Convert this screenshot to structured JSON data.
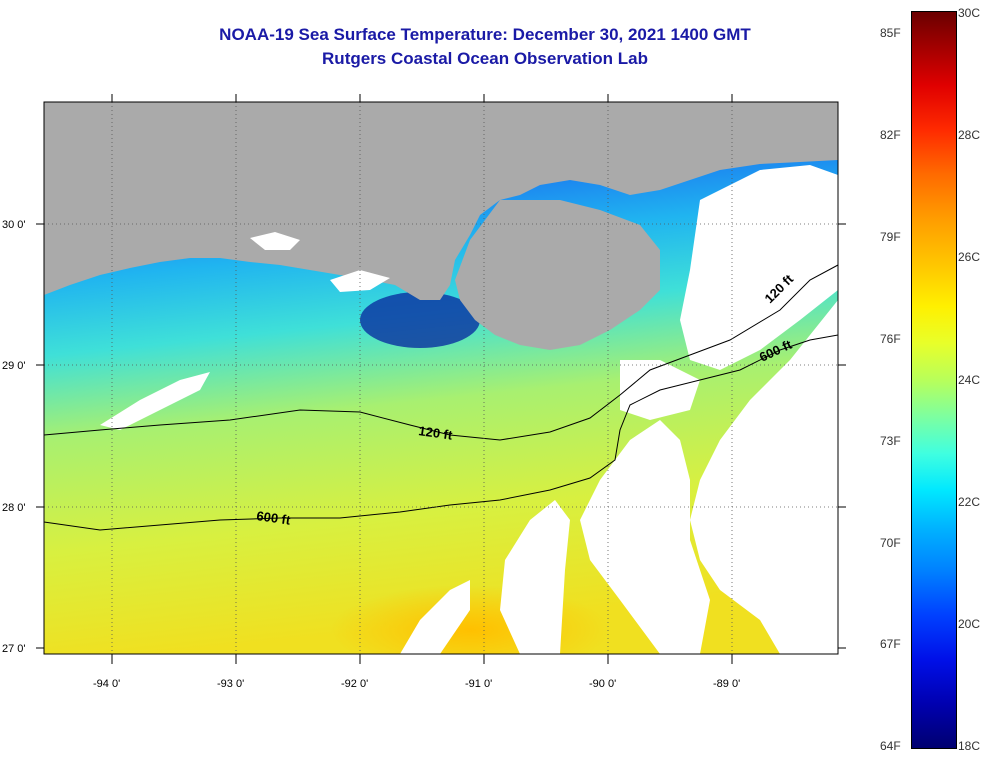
{
  "title": {
    "line1": "NOAA-19 Sea Surface Temperature:  December 30, 2021 1400 GMT",
    "line2": "Rutgers Coastal Ocean Observation Lab"
  },
  "axes": {
    "lat_labels": [
      "30 0'",
      "29 0'",
      "28 0'",
      "27 0'"
    ],
    "lon_labels": [
      "-94 0'",
      "-93 0'",
      "-92 0'",
      "-91 0'",
      "-90 0'",
      "-89 0'"
    ]
  },
  "contours": {
    "c120_left": "120 ft",
    "c600_left": "600 ft",
    "c120_right": "120 ft",
    "c600_right": "600 ft"
  },
  "colorbar": {
    "fahrenheit": [
      "85F",
      "82F",
      "79F",
      "76F",
      "73F",
      "70F",
      "67F",
      "64F"
    ],
    "celsius": [
      "30C",
      "28C",
      "26C",
      "24C",
      "22C",
      "20C",
      "18C"
    ]
  },
  "colors": {
    "land": "#aaaaaa",
    "cloud": "#ffffff",
    "title": "#1a1aa6"
  }
}
